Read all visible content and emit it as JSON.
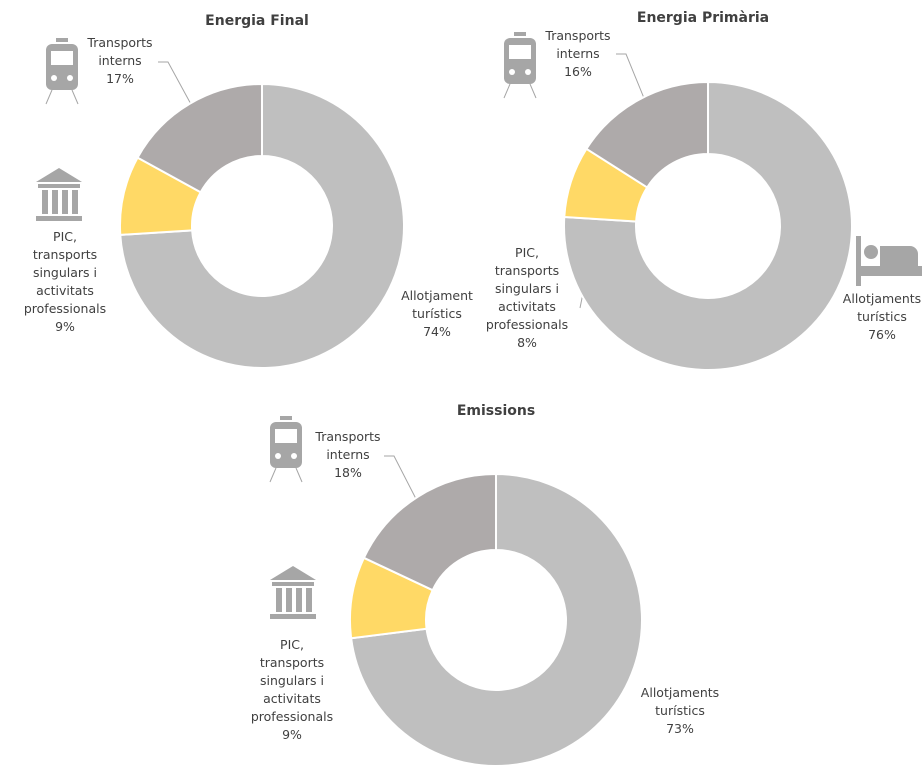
{
  "chart_data": [
    {
      "type": "donut",
      "title": "Energia Final",
      "categories": [
        "Allotjament turístics",
        "PIC, transports singulars i activitats professionals",
        "Transports interns"
      ],
      "values": [
        74,
        9,
        17
      ],
      "value_labels": [
        "74%",
        "9%",
        "17%"
      ],
      "colors": [
        "#bfbfbf",
        "#ffd966",
        "#aeaaaa"
      ]
    },
    {
      "type": "donut",
      "title": "Energia Primària",
      "categories": [
        "Allotjaments turístics",
        "PIC, transports singulars i activitats professionals",
        "Transports interns"
      ],
      "values": [
        76,
        8,
        16
      ],
      "value_labels": [
        "76%",
        "8%",
        "16%"
      ],
      "colors": [
        "#bfbfbf",
        "#ffd966",
        "#aeaaaa"
      ]
    },
    {
      "type": "donut",
      "title": "Emissions",
      "categories": [
        "Allotjaments turístics",
        "PIC, transports singulars i activitats professionals",
        "Transports interns"
      ],
      "values": [
        73,
        9,
        18
      ],
      "value_labels": [
        "73%",
        "9%",
        "18%"
      ],
      "colors": [
        "#bfbfbf",
        "#ffd966",
        "#aeaaaa"
      ]
    }
  ]
}
